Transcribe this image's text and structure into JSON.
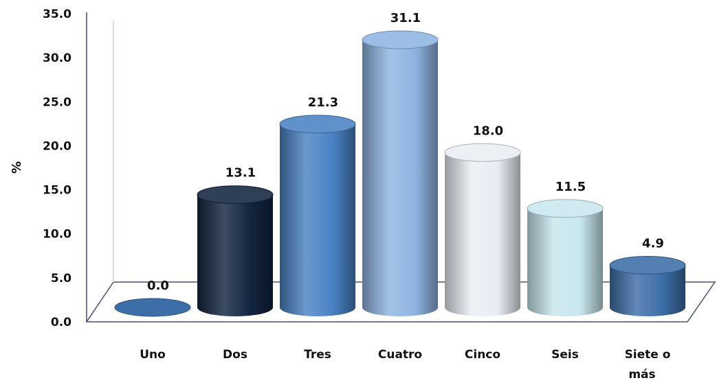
{
  "chart_data": {
    "type": "bar",
    "title": "",
    "xlabel": "",
    "ylabel": "%",
    "ylim": [
      0,
      35
    ],
    "yticks": [
      "0.0",
      "5.0",
      "10.0",
      "15.0",
      "20.0",
      "25.0",
      "30.0",
      "35.0"
    ],
    "categories": [
      "Uno",
      "Dos",
      "Tres",
      "Cuatro",
      "Cinco",
      "Seis",
      "Siete o más"
    ],
    "values": [
      0.0,
      13.1,
      21.3,
      31.1,
      18.0,
      11.5,
      4.9
    ],
    "data_labels": [
      "0.0",
      "13.1",
      "21.3",
      "31.1",
      "18.0",
      "11.5",
      "4.9"
    ],
    "colors": [
      "#3d6ea8",
      "#12253f",
      "#4a82c4",
      "#8fb4e2",
      "#e9edf3",
      "#c8e7ee",
      "#3d6ea8"
    ],
    "grid": false,
    "legend": "none"
  }
}
